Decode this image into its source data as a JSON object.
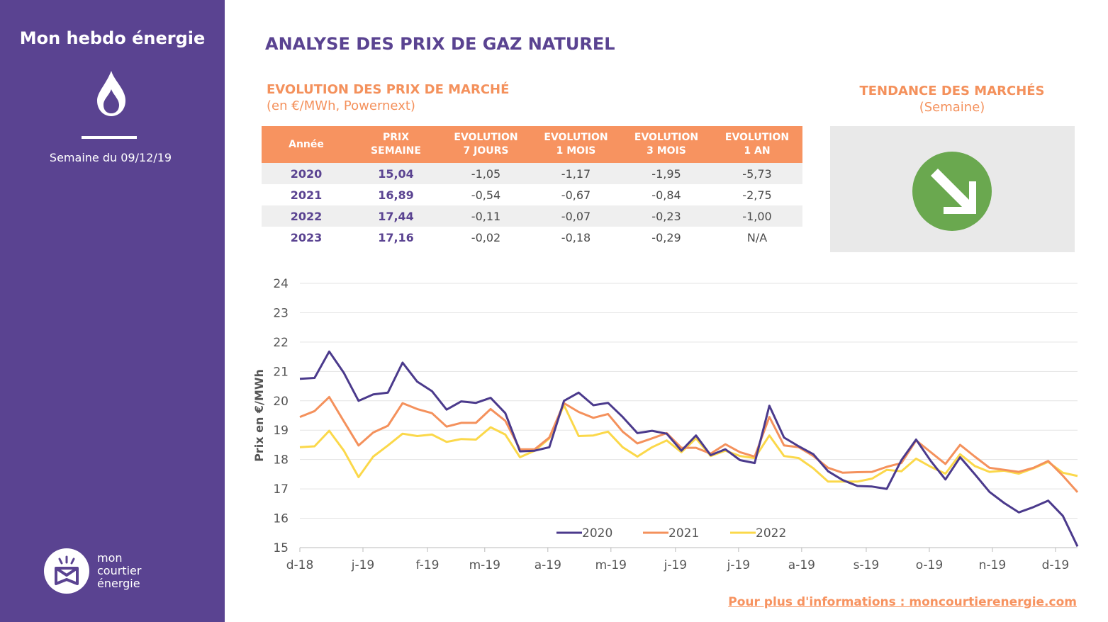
{
  "sidebar": {
    "brand_title": "Mon hebdo énergie",
    "week_label": "Semaine du 09/12/19",
    "logo_lines": [
      "mon",
      "courtier",
      "énergie"
    ],
    "icon": "flame-icon"
  },
  "header": {
    "title": "ANALYSE DES PRIX DE GAZ NATUREL"
  },
  "table_section": {
    "title": "EVOLUTION DES PRIX DE MARCHÉ",
    "note": "(en €/MWh, Powernext)",
    "columns": [
      [
        "Année"
      ],
      [
        "PRIX",
        "SEMAINE"
      ],
      [
        "EVOLUTION",
        "7 JOURS"
      ],
      [
        "EVOLUTION",
        "1 MOIS"
      ],
      [
        "EVOLUTION",
        "3 MOIS"
      ],
      [
        "EVOLUTION",
        "1 AN"
      ]
    ],
    "rows": [
      [
        "2020",
        "15,04",
        "-1,05",
        "-1,17",
        "-1,95",
        "-5,73"
      ],
      [
        "2021",
        "16,89",
        "-0,54",
        "-0,67",
        "-0,84",
        "-2,75"
      ],
      [
        "2022",
        "17,44",
        "-0,11",
        "-0,07",
        "-0,23",
        "-1,00"
      ],
      [
        "2023",
        "17,16",
        "-0,02",
        "-0,18",
        "-0,29",
        "N/A"
      ]
    ]
  },
  "trend": {
    "title": "TENDANCE DES MARCHÉS",
    "note": "(Semaine)",
    "icon": "arrow-down-right-icon",
    "color": "#6aa84f"
  },
  "chart_data": {
    "type": "line",
    "title": "",
    "xlabel": "",
    "ylabel": "Prix en €/MWh",
    "ylim": [
      15,
      24
    ],
    "yticks": [
      15,
      16,
      17,
      18,
      19,
      20,
      21,
      22,
      23,
      24
    ],
    "x_tick_labels": [
      {
        "label": "d-18",
        "index": 0
      },
      {
        "label": "j-19",
        "index": 4.3
      },
      {
        "label": "f-19",
        "index": 8.7
      },
      {
        "label": "m-19",
        "index": 12.6
      },
      {
        "label": "a-19",
        "index": 16.9
      },
      {
        "label": "m-19",
        "index": 21.2
      },
      {
        "label": "j-19",
        "index": 25.6
      },
      {
        "label": "j-19",
        "index": 29.9
      },
      {
        "label": "a-19",
        "index": 34.2
      },
      {
        "label": "s-19",
        "index": 38.6
      },
      {
        "label": "o-19",
        "index": 42.9
      },
      {
        "label": "n-19",
        "index": 47.2
      },
      {
        "label": "d-19",
        "index": 51.5
      }
    ],
    "grid": true,
    "legend_position": "bottom-center",
    "series": [
      {
        "name": "2020",
        "color": "#4b3a8c",
        "values": [
          20.75,
          20.78,
          21.68,
          20.95,
          20.0,
          20.22,
          20.28,
          21.3,
          20.65,
          20.33,
          19.7,
          19.98,
          19.93,
          20.1,
          19.58,
          18.28,
          18.3,
          18.42,
          20.0,
          20.28,
          19.85,
          19.93,
          19.45,
          18.9,
          18.98,
          18.88,
          18.3,
          18.82,
          18.15,
          18.35,
          17.98,
          17.88,
          19.83,
          18.75,
          18.45,
          18.18,
          17.6,
          17.3,
          17.1,
          17.08,
          17.0,
          17.98,
          18.68,
          17.95,
          17.32,
          18.08,
          17.5,
          16.9,
          16.52,
          16.2,
          16.38,
          16.6,
          16.08,
          15.04
        ]
      },
      {
        "name": "2021",
        "color": "#f4915c",
        "values": [
          19.45,
          19.65,
          20.13,
          19.3,
          18.48,
          18.92,
          19.15,
          19.92,
          19.72,
          19.58,
          19.12,
          19.25,
          19.25,
          19.72,
          19.32,
          18.35,
          18.35,
          18.75,
          19.92,
          19.62,
          19.42,
          19.55,
          18.95,
          18.55,
          18.72,
          18.9,
          18.4,
          18.4,
          18.2,
          18.52,
          18.25,
          18.1,
          19.45,
          18.48,
          18.42,
          18.12,
          17.72,
          17.55,
          17.57,
          17.58,
          17.75,
          17.88,
          18.65,
          18.25,
          17.85,
          18.5,
          18.1,
          17.72,
          17.65,
          17.58,
          17.72,
          17.95,
          17.45,
          16.89
        ]
      },
      {
        "name": "2022",
        "color": "#fbd84a",
        "values": [
          18.42,
          18.45,
          18.98,
          18.3,
          17.4,
          18.1,
          18.48,
          18.88,
          18.8,
          18.85,
          18.6,
          18.7,
          18.68,
          19.1,
          18.85,
          18.08,
          18.3,
          18.72,
          19.85,
          18.8,
          18.82,
          18.95,
          18.42,
          18.1,
          18.42,
          18.65,
          18.25,
          18.72,
          18.12,
          18.3,
          18.12,
          18.05,
          18.82,
          18.12,
          18.05,
          17.7,
          17.25,
          17.25,
          17.25,
          17.35,
          17.65,
          17.6,
          18.03,
          17.75,
          17.52,
          18.18,
          17.78,
          17.58,
          17.62,
          17.52,
          17.7,
          17.92,
          17.55,
          17.44
        ]
      }
    ]
  },
  "footer": {
    "link_text": "Pour plus d'informations : moncourtierenergie.com"
  }
}
